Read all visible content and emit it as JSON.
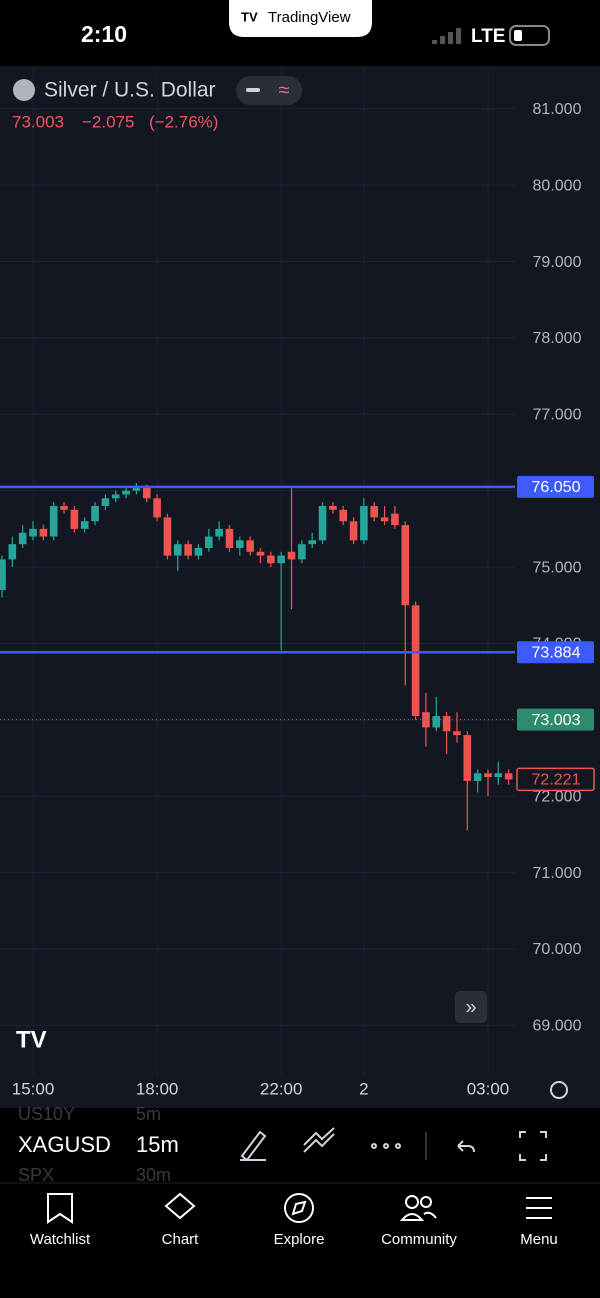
{
  "status_bar": {
    "time": "2:10",
    "app": "TradingView",
    "network": "LTE"
  },
  "header": {
    "symbol_name": "Silver / U.S. Dollar",
    "last": "73.003",
    "change": "−2.075",
    "change_pct": "(−2.76%)"
  },
  "chart_data": {
    "type": "candlestick",
    "categories": [
      null,
      null,
      null,
      "15:00",
      null,
      null,
      null,
      null,
      null,
      null,
      null,
      null,
      null,
      null,
      null,
      "18:00",
      null,
      null,
      null,
      null,
      null,
      null,
      null,
      null,
      null,
      null,
      null,
      "22:00",
      null,
      null,
      null,
      null,
      null,
      null,
      null,
      "2",
      null,
      null,
      null,
      null,
      null,
      null,
      null,
      null,
      null,
      null,
      null,
      "03:00",
      null,
      null
    ],
    "open": [
      74.7,
      75.1,
      75.3,
      75.4,
      75.5,
      75.4,
      75.8,
      75.75,
      75.5,
      75.6,
      75.8,
      75.9,
      75.95,
      76.0,
      76.05,
      75.9,
      75.65,
      75.15,
      75.3,
      75.15,
      75.25,
      75.4,
      75.5,
      75.25,
      75.35,
      75.2,
      75.15,
      75.05,
      75.2,
      75.1,
      75.3,
      75.35,
      75.8,
      75.75,
      75.6,
      75.35,
      75.8,
      75.65,
      75.7,
      75.55,
      74.5,
      73.1,
      72.9,
      73.05,
      72.85,
      72.8,
      72.2,
      72.3,
      72.25,
      72.3
    ],
    "high": [
      75.15,
      75.4,
      75.55,
      75.6,
      75.55,
      75.85,
      75.85,
      75.8,
      75.65,
      75.85,
      75.95,
      76.0,
      76.05,
      76.1,
      76.08,
      75.95,
      75.7,
      75.35,
      75.35,
      75.3,
      75.5,
      75.6,
      75.55,
      75.4,
      75.4,
      75.25,
      75.2,
      75.2,
      76.05,
      75.35,
      75.45,
      75.85,
      75.85,
      75.8,
      75.65,
      75.9,
      75.85,
      75.8,
      75.8,
      75.6,
      74.55,
      73.35,
      73.3,
      73.1,
      73.1,
      72.85,
      72.35,
      72.35,
      72.45,
      72.35
    ],
    "low": [
      74.6,
      75.0,
      75.25,
      75.35,
      75.35,
      75.35,
      75.7,
      75.45,
      75.45,
      75.55,
      75.75,
      75.85,
      75.9,
      75.95,
      75.85,
      75.6,
      75.1,
      74.95,
      75.1,
      75.1,
      75.2,
      75.35,
      75.2,
      75.15,
      75.15,
      75.05,
      75.0,
      73.91,
      74.45,
      75.05,
      75.25,
      75.3,
      75.7,
      75.55,
      75.3,
      75.3,
      75.6,
      75.55,
      75.5,
      73.45,
      73.0,
      72.65,
      72.85,
      72.55,
      72.7,
      71.55,
      72.05,
      72.0,
      72.15,
      72.15
    ],
    "close": [
      75.1,
      75.3,
      75.45,
      75.5,
      75.4,
      75.8,
      75.75,
      75.5,
      75.6,
      75.8,
      75.9,
      75.95,
      76.0,
      76.05,
      75.9,
      75.65,
      75.15,
      75.3,
      75.15,
      75.25,
      75.4,
      75.5,
      75.25,
      75.35,
      75.2,
      75.15,
      75.05,
      75.15,
      75.1,
      75.3,
      75.35,
      75.8,
      75.75,
      75.6,
      75.35,
      75.8,
      75.65,
      75.6,
      75.55,
      74.5,
      73.05,
      72.9,
      73.05,
      72.85,
      72.8,
      72.2,
      72.3,
      72.25,
      72.3,
      72.22
    ],
    "up_color": "#26a69a",
    "down_color": "#ef5350",
    "ylim": [
      68.35,
      81.56
    ],
    "yticks": [
      {
        "value": 69,
        "label": "69.000"
      },
      {
        "value": 70,
        "label": "70.000"
      },
      {
        "value": 71,
        "label": "71.000"
      },
      {
        "value": 72,
        "label": "72.000"
      },
      {
        "value": 73,
        "label": "73.000"
      },
      {
        "value": 74,
        "label": "74.000"
      },
      {
        "value": 75,
        "label": "75.000"
      },
      {
        "value": 76,
        "label": "76.000"
      },
      {
        "value": 77,
        "label": "77.000"
      },
      {
        "value": 78,
        "label": "78.000"
      },
      {
        "value": 79,
        "label": "79.000"
      },
      {
        "value": 80,
        "label": "80.000"
      },
      {
        "value": 81,
        "label": "81.000"
      }
    ],
    "grid": true,
    "levels": [
      {
        "value": 76.05,
        "label": "76.050",
        "color": "#3d5afe",
        "style": "solid"
      },
      {
        "value": 73.884,
        "label": "73.884",
        "color": "#3d5afe",
        "style": "solid"
      },
      {
        "value": 73.003,
        "label": "73.003",
        "color": "#2e8b6f",
        "style": "dotted"
      },
      {
        "value": 72.221,
        "label": "72.221",
        "color": "#ef5350",
        "style": "outline"
      }
    ]
  },
  "toolbar": {
    "symbol": "XAGUSD",
    "interval": "15m",
    "ghost_symbols": [
      "US10Y",
      "SPX"
    ],
    "ghost_intervals": [
      "5m",
      "30m"
    ]
  },
  "nav": [
    "Watchlist",
    "Chart",
    "Explore",
    "Community",
    "Menu"
  ]
}
